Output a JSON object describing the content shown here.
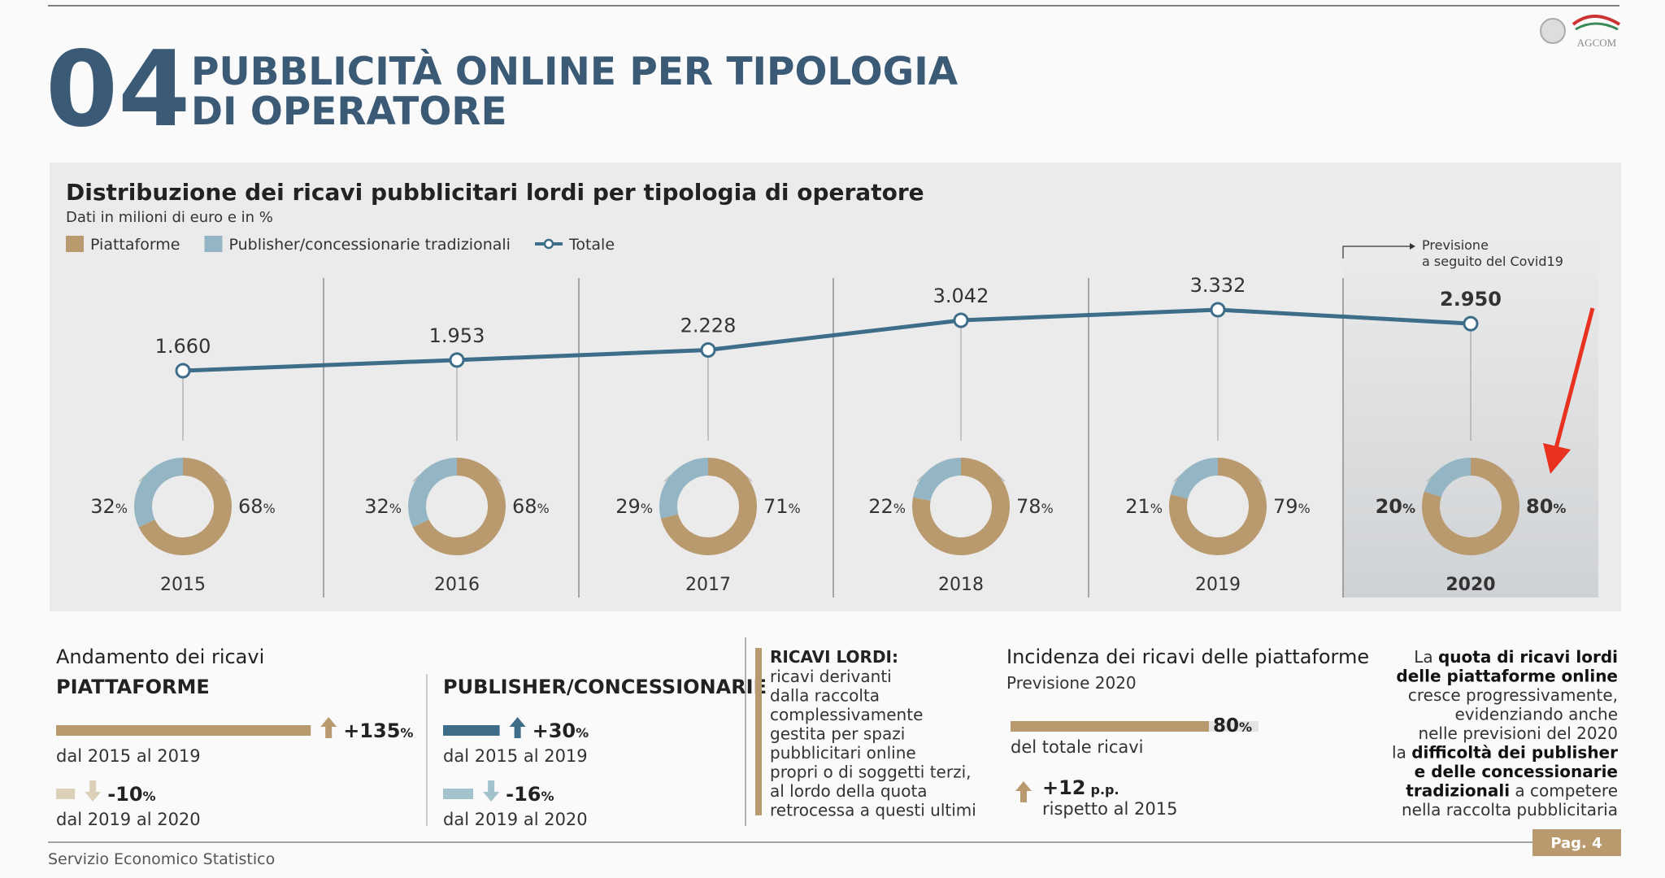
{
  "header": {
    "number": "04",
    "title": [
      "PUBBLICITÀ ONLINE PER TIPOLOGIA",
      "DI OPERATORE"
    ],
    "logo": "AGCOM"
  },
  "chart_data": {
    "type": "line",
    "title": "Distribuzione dei ricavi pubblicitari lordi per tipologia di operatore",
    "subtitle": "Dati in milioni di euro e in %",
    "categories": [
      "2015",
      "2016",
      "2017",
      "2018",
      "2019",
      "2020"
    ],
    "series": [
      {
        "name": "Totale",
        "color": "#3e6d8a",
        "values": [
          1660,
          1953,
          2228,
          3042,
          3332,
          2950
        ],
        "value_labels": [
          "1.660",
          "1.953",
          "2.228",
          "3.042",
          "3.332",
          "2.950"
        ]
      }
    ],
    "donut_series": [
      {
        "name": "Piattaforme",
        "color": "#b99a6e",
        "values": [
          68,
          68,
          71,
          78,
          79,
          80
        ]
      },
      {
        "name": "Publisher/concessionarie tradizionali",
        "color": "#94b5c3",
        "values": [
          32,
          32,
          29,
          22,
          21,
          20
        ]
      }
    ],
    "unit": "%",
    "highlight_index": 5,
    "annotation": [
      "Previsione",
      "a seguito del Covid19"
    ]
  },
  "piattaforme": {
    "title": "Andamento dei ricavi",
    "subtitle": "PIATTAFORME",
    "color": "#b99a6e",
    "light_color": "#ddd0b8",
    "changes": [
      {
        "value": 135,
        "label": "+135",
        "unit": "%",
        "period": "dal 2015 al 2019"
      },
      {
        "value": -10,
        "label": "-10",
        "unit": "%",
        "period": "dal 2019 al 2020"
      }
    ]
  },
  "publisher": {
    "subtitle": "PUBLISHER/CONCESSIONARIE",
    "color": "#3e6d8a",
    "light_color": "#a3c3cc",
    "changes": [
      {
        "value": 30,
        "label": "+30",
        "unit": "%",
        "period": "dal 2015 al 2019"
      },
      {
        "value": -16,
        "label": "-16",
        "unit": "%",
        "period": "dal 2019 al 2020"
      }
    ]
  },
  "definition": {
    "title": "RICAVI LORDI:",
    "lines": [
      "ricavi derivanti",
      "dalla raccolta",
      "complessivamente",
      "gestita per spazi",
      "pubblicitari online",
      "propri o di soggetti terzi,",
      "al lordo della quota",
      "retrocessa a questi ultimi"
    ]
  },
  "incidence": {
    "title": "Incidenza dei ricavi delle piattaforme",
    "subtitle": "Previsione 2020",
    "value": 80,
    "unit": "%",
    "caption": "del totale ricavi",
    "change": {
      "value": 12,
      "label": "+12",
      "unit": "p.p.",
      "caption": "rispetto al 2015"
    }
  },
  "note": {
    "lines": [
      [
        {
          "text": "La "
        },
        {
          "text": "quota di ricavi lordi",
          "bold": true
        }
      ],
      [
        {
          "text": "delle piattaforme online",
          "bold": true
        }
      ],
      [
        {
          "text": "cresce progressivamente,"
        }
      ],
      [
        {
          "text": "evidenziando anche"
        }
      ],
      [
        {
          "text": "nelle previsioni del 2020"
        }
      ],
      [
        {
          "text": "la "
        },
        {
          "text": "difficoltà dei publisher",
          "bold": true
        }
      ],
      [
        {
          "text": "e delle concessionarie",
          "bold": true
        }
      ],
      [
        {
          "text": "tradizionali",
          "bold": true
        },
        {
          "text": " a competere"
        }
      ],
      [
        {
          "text": "nella raccolta pubblicitaria"
        }
      ]
    ]
  },
  "footer": {
    "source": "Servizio Economico Statistico",
    "page": "Pag. 4"
  }
}
